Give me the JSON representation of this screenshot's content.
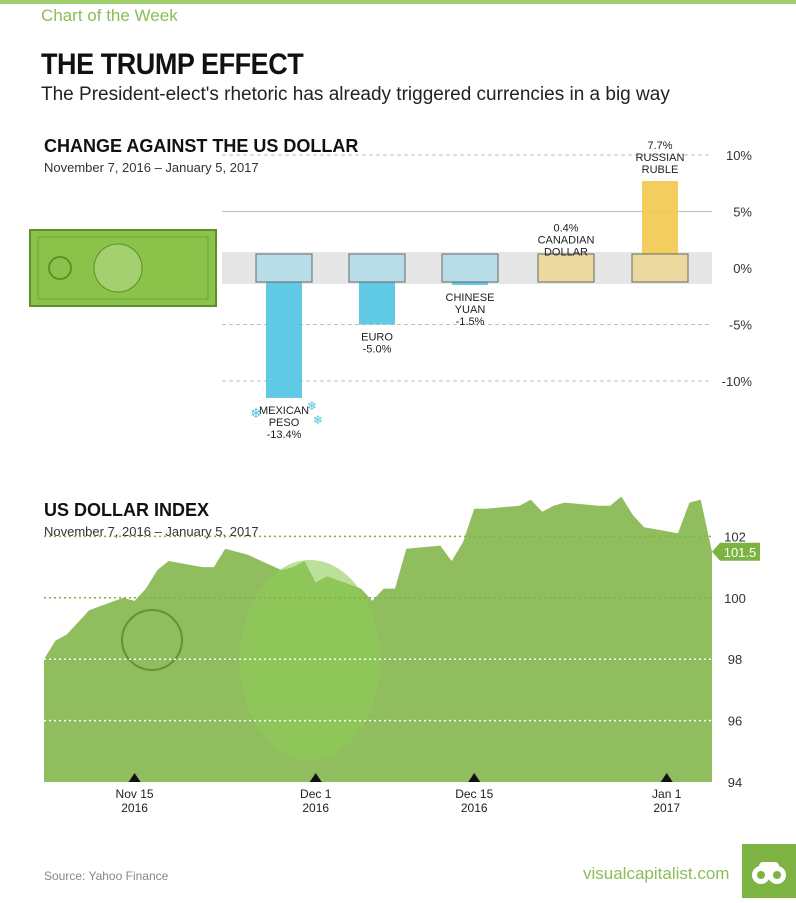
{
  "header": {
    "series_label": "Chart of the Week",
    "title": "THE TRUMP EFFECT",
    "subtitle": "The President-elect's rhetoric has already triggered currencies in a big way"
  },
  "colors": {
    "accent_green": "#8bbd59",
    "bill_green": "#7cb342",
    "negative_bar": "#4fc3e0",
    "positive_bar": "#f2c94c",
    "zero_band": "#e6e6e6"
  },
  "chart_data": [
    {
      "type": "bar",
      "title": "CHANGE AGAINST THE US DOLLAR",
      "subtitle": "November 7, 2016 – January 5, 2017",
      "categories": [
        "MEXICAN PESO",
        "EURO",
        "CHINESE YUAN",
        "CANADIAN DOLLAR",
        "RUSSIAN RUBLE"
      ],
      "category_label_lines": [
        [
          "MEXICAN",
          "PESO"
        ],
        [
          "EURO"
        ],
        [
          "CHINESE",
          "YUAN"
        ],
        [
          "CANADIAN",
          "DOLLAR"
        ],
        [
          "RUSSIAN",
          "RUBLE"
        ]
      ],
      "value_labels": [
        "-13.4%",
        "-5.0%",
        "-1.5%",
        "0.4%",
        "7.7%"
      ],
      "values": [
        -13.4,
        -5.0,
        -1.5,
        0.4,
        7.7
      ],
      "ylim": [
        -10,
        10
      ],
      "yticks": [
        10,
        5,
        0,
        -5,
        -10
      ],
      "ytick_labels": [
        "10%",
        "5%",
        "0%",
        "-5%",
        "-10%"
      ],
      "xlabel": "",
      "ylabel": "",
      "grid": true
    },
    {
      "type": "area",
      "title": "US DOLLAR INDEX",
      "subtitle": "November 7, 2016 – January 5, 2017",
      "x": [
        "2016-11-07",
        "2016-11-08",
        "2016-11-09",
        "2016-11-10",
        "2016-11-11",
        "2016-11-14",
        "2016-11-15",
        "2016-11-16",
        "2016-11-17",
        "2016-11-18",
        "2016-11-21",
        "2016-11-22",
        "2016-11-23",
        "2016-11-24",
        "2016-11-25",
        "2016-11-28",
        "2016-11-29",
        "2016-11-30",
        "2016-12-01",
        "2016-12-02",
        "2016-12-05",
        "2016-12-06",
        "2016-12-07",
        "2016-12-08",
        "2016-12-09",
        "2016-12-12",
        "2016-12-13",
        "2016-12-14",
        "2016-12-15",
        "2016-12-16",
        "2016-12-19",
        "2016-12-20",
        "2016-12-21",
        "2016-12-22",
        "2016-12-23",
        "2016-12-26",
        "2016-12-27",
        "2016-12-28",
        "2016-12-29",
        "2016-12-30",
        "2017-01-02",
        "2017-01-03",
        "2017-01-04",
        "2017-01-05"
      ],
      "values": [
        98.0,
        98.6,
        98.8,
        99.2,
        99.6,
        100.0,
        99.9,
        100.3,
        100.9,
        101.2,
        101.0,
        101.0,
        101.6,
        101.5,
        101.4,
        100.9,
        101.0,
        101.2,
        100.5,
        100.7,
        100.3,
        99.9,
        100.3,
        100.3,
        101.6,
        101.7,
        101.2,
        101.8,
        102.9,
        102.9,
        103.0,
        103.2,
        102.8,
        103.0,
        103.1,
        103.0,
        103.0,
        103.3,
        102.7,
        102.3,
        102.1,
        103.1,
        103.2,
        101.5
      ],
      "last_value_label": "101.5",
      "ylim": [
        94,
        103.5
      ],
      "yticks": [
        102,
        100,
        98,
        96,
        94
      ],
      "ytick_labels": [
        "102",
        "100",
        "98",
        "96",
        "94"
      ],
      "xticks": [
        "2016-11-15",
        "2016-12-01",
        "2016-12-15",
        "2017-01-01"
      ],
      "xtick_labels": [
        [
          "Nov 15",
          "2016"
        ],
        [
          "Dec 1",
          "2016"
        ],
        [
          "Dec 15",
          "2016"
        ],
        [
          "Jan 1",
          "2017"
        ]
      ],
      "xlabel": "",
      "ylabel": "",
      "grid": true
    }
  ],
  "footer": {
    "source": "Source: Yahoo Finance",
    "brand": "visualcapitalist.com"
  }
}
